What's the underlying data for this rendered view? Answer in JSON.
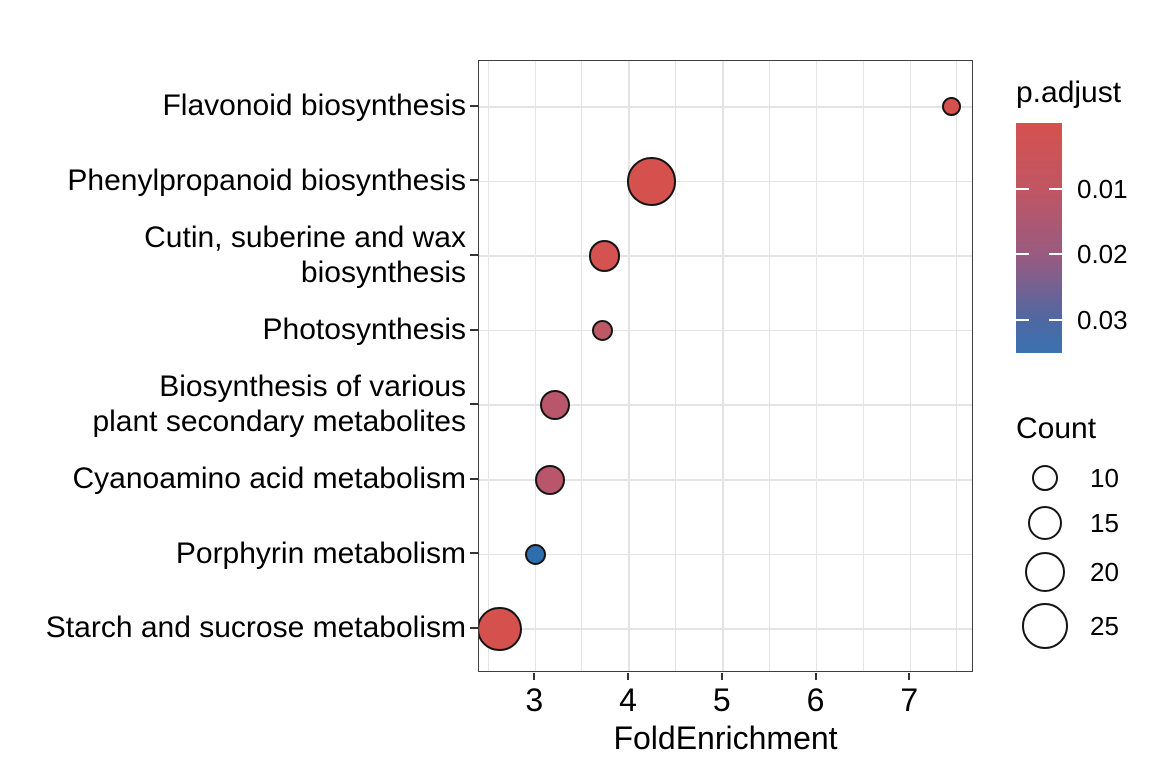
{
  "chart_data": {
    "type": "scatter",
    "subtype": "bubble-dotplot-enrichment",
    "title": "",
    "xlabel": "FoldEnrichment",
    "ylabel": "",
    "x_ticks": [
      3,
      4,
      5,
      6,
      7
    ],
    "x_range": [
      2.4,
      7.68
    ],
    "grid": "major x at integers, minor x at halves, major y at category rows",
    "rows": [
      {
        "label": "Flavonoid biosynthesis",
        "label_lines": [
          "Flavonoid biosynthesis"
        ],
        "fold_enrichment": 7.44,
        "count": 6,
        "p_adjust": 0.002,
        "color": "#d5514e"
      },
      {
        "label": "Phenylpropanoid biosynthesis",
        "label_lines": [
          "Phenylpropanoid biosynthesis"
        ],
        "fold_enrichment": 4.24,
        "count": 27,
        "p_adjust": 0.001,
        "color": "#d5514e"
      },
      {
        "label": "Cutin, suberine and wax biosynthesis",
        "label_lines": [
          "Cutin, suberine and wax",
          "biosynthesis"
        ],
        "fold_enrichment": 3.74,
        "count": 13,
        "p_adjust": 0.003,
        "color": "#d4524f"
      },
      {
        "label": "Photosynthesis",
        "label_lines": [
          "Photosynthesis"
        ],
        "fold_enrichment": 3.72,
        "count": 7,
        "p_adjust": 0.012,
        "color": "#bc5965"
      },
      {
        "label": "Biosynthesis of various plant secondary metabolites",
        "label_lines": [
          "Biosynthesis of various",
          "plant secondary metabolites"
        ],
        "fold_enrichment": 3.21,
        "count": 12,
        "p_adjust": 0.013,
        "color": "#b9566b"
      },
      {
        "label": "Cyanoamino acid metabolism",
        "label_lines": [
          "Cyanoamino acid metabolism"
        ],
        "fold_enrichment": 3.16,
        "count": 12,
        "p_adjust": 0.013,
        "color": "#b9566b"
      },
      {
        "label": "Porphyrin metabolism",
        "label_lines": [
          "Porphyrin metabolism"
        ],
        "fold_enrichment": 3.0,
        "count": 7,
        "p_adjust": 0.033,
        "color": "#2e6dae"
      },
      {
        "label": "Starch and sucrose metabolism",
        "label_lines": [
          "Starch and sucrose metabolism"
        ],
        "fold_enrichment": 2.62,
        "count": 23,
        "p_adjust": 0.002,
        "color": "#d4514e"
      }
    ],
    "legends": {
      "p_adjust": {
        "title": "p.adjust",
        "tick_labels": [
          "0.01",
          "0.02",
          "0.03"
        ],
        "tick_values": [
          0.01,
          0.02,
          0.03
        ],
        "range": [
          0,
          0.035
        ],
        "gradient_stops": [
          {
            "pos": 0,
            "color": "#d4514f"
          },
          {
            "pos": 0.29,
            "color": "#c05663"
          },
          {
            "pos": 0.57,
            "color": "#9a5a80"
          },
          {
            "pos": 0.86,
            "color": "#4e68a2"
          },
          {
            "pos": 1,
            "color": "#3b72b2"
          }
        ]
      },
      "count": {
        "title": "Count",
        "items": [
          10,
          15,
          20,
          25
        ]
      }
    }
  }
}
